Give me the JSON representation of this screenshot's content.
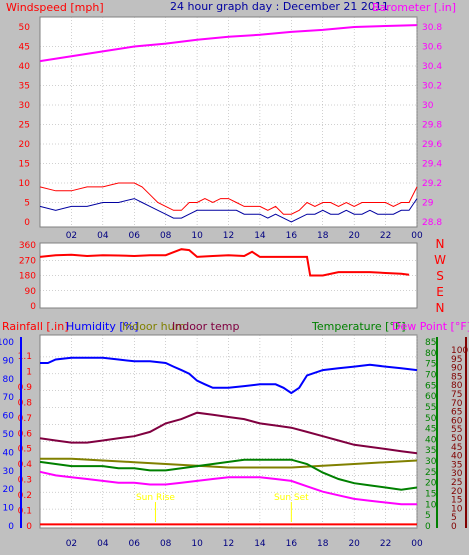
{
  "page": {
    "title": "24 hour graph day : December 21 2011"
  },
  "colors": {
    "background": "#c0c0c0",
    "plot": "#ffffff",
    "wind": "#ff0000",
    "wind_avg": "#0000a0",
    "barometer": "#ff00ff",
    "direction": "#ff0000",
    "rainfall": "#ff0000",
    "humidity": "#0000ff",
    "indoor_hum": "#808000",
    "indoor_temp": "#800040",
    "temperature": "#008000",
    "dew_point": "#ff00ff",
    "sun": "#ffff00"
  },
  "x_tick_labels": [
    "02",
    "04",
    "06",
    "08",
    "10",
    "12",
    "14",
    "16",
    "18",
    "20",
    "22",
    "00"
  ],
  "chart_data": [
    {
      "type": "line",
      "title": "24 hour graph day : December 21 2011",
      "left_axis_label": "Windspeed [mph]",
      "right_axis_label": "Barometer [.in]",
      "left_ticks": [
        "50",
        "45",
        "40",
        "35",
        "30",
        "25",
        "20",
        "15",
        "10",
        "5",
        "0"
      ],
      "right_ticks": [
        "30.8",
        "30.6",
        "30.4",
        "30.2",
        "30",
        "29.8",
        "29.6",
        "29.4",
        "29.2",
        "29",
        "28.8"
      ],
      "ylim_left": [
        0,
        50
      ],
      "ylim_right": [
        28.8,
        30.8
      ],
      "x_hours": [
        0,
        24
      ],
      "series": [
        {
          "key": "wind_gust",
          "x": [
            0,
            1,
            2,
            3,
            4,
            5,
            6,
            6.5,
            7,
            7.5,
            8,
            8.5,
            9,
            9.5,
            10,
            10.5,
            11,
            11.5,
            12,
            12.5,
            13,
            13.5,
            14,
            14.5,
            15,
            15.5,
            16,
            16.5,
            17,
            17.5,
            18,
            18.5,
            19,
            19.5,
            20,
            20.5,
            21,
            21.5,
            22,
            22.5,
            23,
            23.5,
            24
          ],
          "y": [
            9,
            8,
            8,
            9,
            9,
            10,
            10,
            9,
            7,
            5,
            4,
            3,
            3,
            5,
            5,
            6,
            5,
            6,
            6,
            5,
            4,
            4,
            4,
            3,
            4,
            2,
            2,
            3,
            5,
            4,
            5,
            5,
            4,
            5,
            4,
            5,
            5,
            5,
            5,
            4,
            5,
            5,
            9
          ]
        },
        {
          "key": "wind_avg",
          "x": [
            0,
            1,
            2,
            3,
            4,
            5,
            6,
            6.5,
            7,
            7.5,
            8,
            8.5,
            9,
            9.5,
            10,
            10.5,
            11,
            11.5,
            12,
            12.5,
            13,
            13.5,
            14,
            14.5,
            15,
            15.5,
            16,
            16.5,
            17,
            17.5,
            18,
            18.5,
            19,
            19.5,
            20,
            20.5,
            21,
            21.5,
            22,
            22.5,
            23,
            23.5,
            24
          ],
          "y": [
            4,
            3,
            4,
            4,
            5,
            5,
            6,
            5,
            4,
            3,
            2,
            1,
            1,
            2,
            3,
            3,
            3,
            3,
            3,
            3,
            2,
            2,
            2,
            1,
            2,
            1,
            0,
            1,
            2,
            2,
            3,
            2,
            2,
            3,
            2,
            2,
            3,
            2,
            2,
            2,
            3,
            3,
            6
          ]
        },
        {
          "key": "barometer",
          "x": [
            0,
            2,
            4,
            6,
            8,
            10,
            12,
            14,
            16,
            18,
            20,
            22,
            24
          ],
          "y": [
            30.45,
            30.5,
            30.55,
            30.6,
            30.63,
            30.67,
            30.7,
            30.72,
            30.75,
            30.77,
            30.8,
            30.81,
            30.82
          ]
        }
      ]
    },
    {
      "type": "line",
      "left_ticks": [
        "360",
        "270",
        "180",
        "90",
        "0"
      ],
      "right_ticks": [
        "N",
        "W",
        "S",
        "E",
        "N"
      ],
      "ylim": [
        0,
        360
      ],
      "x_hours": [
        0,
        24
      ],
      "series": [
        {
          "key": "direction",
          "x": [
            0,
            1,
            2,
            3,
            4,
            5,
            6,
            7,
            8,
            9,
            9.5,
            10,
            11,
            12,
            13,
            13.5,
            14,
            15,
            16,
            17,
            17.2,
            18,
            19,
            20,
            21,
            22,
            23,
            23.5
          ],
          "y": [
            290,
            300,
            302,
            295,
            300,
            298,
            295,
            300,
            300,
            335,
            330,
            290,
            295,
            300,
            295,
            320,
            290,
            290,
            290,
            290,
            180,
            180,
            200,
            200,
            200,
            195,
            190,
            185
          ]
        }
      ]
    },
    {
      "type": "line",
      "labels": {
        "rainfall": "Rainfall [.in]",
        "humidity": "Humidity [%]",
        "indoor_hum": "Indoor hum",
        "indoor_temp": "Indoor temp",
        "temperature": "Temperature [°F]",
        "dew_point": "Dew Point [°F]"
      },
      "rain_ticks": [
        "1.1",
        "1",
        "0.9",
        "0.8",
        "0.7",
        "0.6",
        "0.5",
        "0.4",
        "0.3",
        "0.2",
        "0.1",
        "0"
      ],
      "humidity_ticks": [
        "100",
        "90",
        "80",
        "70",
        "60",
        "50",
        "40",
        "30",
        "20",
        "10",
        "0"
      ],
      "temp_ticks": [
        "85",
        "80",
        "75",
        "70",
        "65",
        "60",
        "55",
        "50",
        "45",
        "40",
        "35",
        "30",
        "25",
        "20",
        "15",
        "10",
        "5",
        "0"
      ],
      "dew_ticks": [
        "100",
        "95",
        "90",
        "85",
        "80",
        "75",
        "70",
        "65",
        "60",
        "55",
        "50",
        "45",
        "40",
        "35",
        "30",
        "25",
        "20",
        "15",
        "10",
        "5",
        "0"
      ],
      "ylim_rain": [
        0,
        1.15
      ],
      "ylim_humidity": [
        0,
        105
      ],
      "ylim_temp": [
        0,
        87
      ],
      "ylim_dew": [
        0,
        103
      ],
      "x_hours": [
        0,
        24
      ],
      "sun_events": [
        {
          "label": "Sun Rise",
          "hour": 7.35
        },
        {
          "label": "Sun Set",
          "hour": 16.0
        }
      ],
      "series": [
        {
          "key": "humidity",
          "axis": "humidity",
          "x": [
            0,
            0.5,
            1,
            2,
            3,
            4,
            5,
            6,
            7,
            8,
            8.5,
            9,
            9.5,
            10,
            10.5,
            11,
            12,
            13,
            14,
            15,
            15.5,
            16,
            16.5,
            17,
            18,
            19,
            20,
            21,
            22,
            23,
            24
          ],
          "y": [
            92,
            92,
            94,
            95,
            95,
            95,
            94,
            93,
            93,
            92,
            90,
            88,
            86,
            82,
            80,
            78,
            78,
            79,
            80,
            80,
            78,
            75,
            78,
            85,
            88,
            89,
            90,
            91,
            90,
            89,
            88
          ]
        },
        {
          "key": "indoor_hum",
          "axis": "humidity",
          "x": [
            0,
            2,
            4,
            6,
            8,
            10,
            12,
            14,
            16,
            18,
            20,
            22,
            24
          ],
          "y": [
            38,
            38,
            37,
            36,
            35,
            34,
            33,
            33,
            33,
            34,
            35,
            36,
            37
          ]
        },
        {
          "key": "indoor_temp",
          "axis": "temp",
          "x": [
            0,
            1,
            2,
            3,
            4,
            5,
            6,
            7,
            8,
            9,
            10,
            11,
            12,
            13,
            14,
            15,
            16,
            17,
            18,
            19,
            20,
            21,
            22,
            23,
            24
          ],
          "y": [
            41,
            40,
            39,
            39,
            40,
            41,
            42,
            44,
            48,
            50,
            53,
            52,
            51,
            50,
            48,
            47,
            46,
            44,
            42,
            40,
            38,
            37,
            36,
            35,
            34
          ]
        },
        {
          "key": "temperature",
          "axis": "temp",
          "x": [
            0,
            1,
            2,
            3,
            4,
            5,
            6,
            7,
            8,
            9,
            10,
            11,
            12,
            13,
            14,
            15,
            16,
            17,
            18,
            19,
            20,
            21,
            22,
            23,
            24
          ],
          "y": [
            30,
            29,
            28,
            28,
            28,
            27,
            27,
            26,
            26,
            27,
            28,
            29,
            30,
            31,
            31,
            31,
            31,
            29,
            25,
            22,
            20,
            19,
            18,
            17,
            18
          ]
        },
        {
          "key": "dew_point",
          "axis": "dew",
          "x": [
            0,
            1,
            2,
            3,
            4,
            5,
            6,
            7,
            8,
            9,
            10,
            11,
            12,
            13,
            14,
            15,
            16,
            17,
            18,
            19,
            20,
            21,
            22,
            23,
            24
          ],
          "y": [
            30,
            28,
            27,
            26,
            25,
            24,
            24,
            23,
            23,
            24,
            25,
            26,
            27,
            27,
            27,
            26,
            25,
            22,
            19,
            17,
            15,
            14,
            13,
            12,
            12
          ]
        },
        {
          "key": "rainfall",
          "axis": "rain",
          "x": [
            0,
            24
          ],
          "y": [
            0.01,
            0.01
          ]
        }
      ]
    }
  ]
}
